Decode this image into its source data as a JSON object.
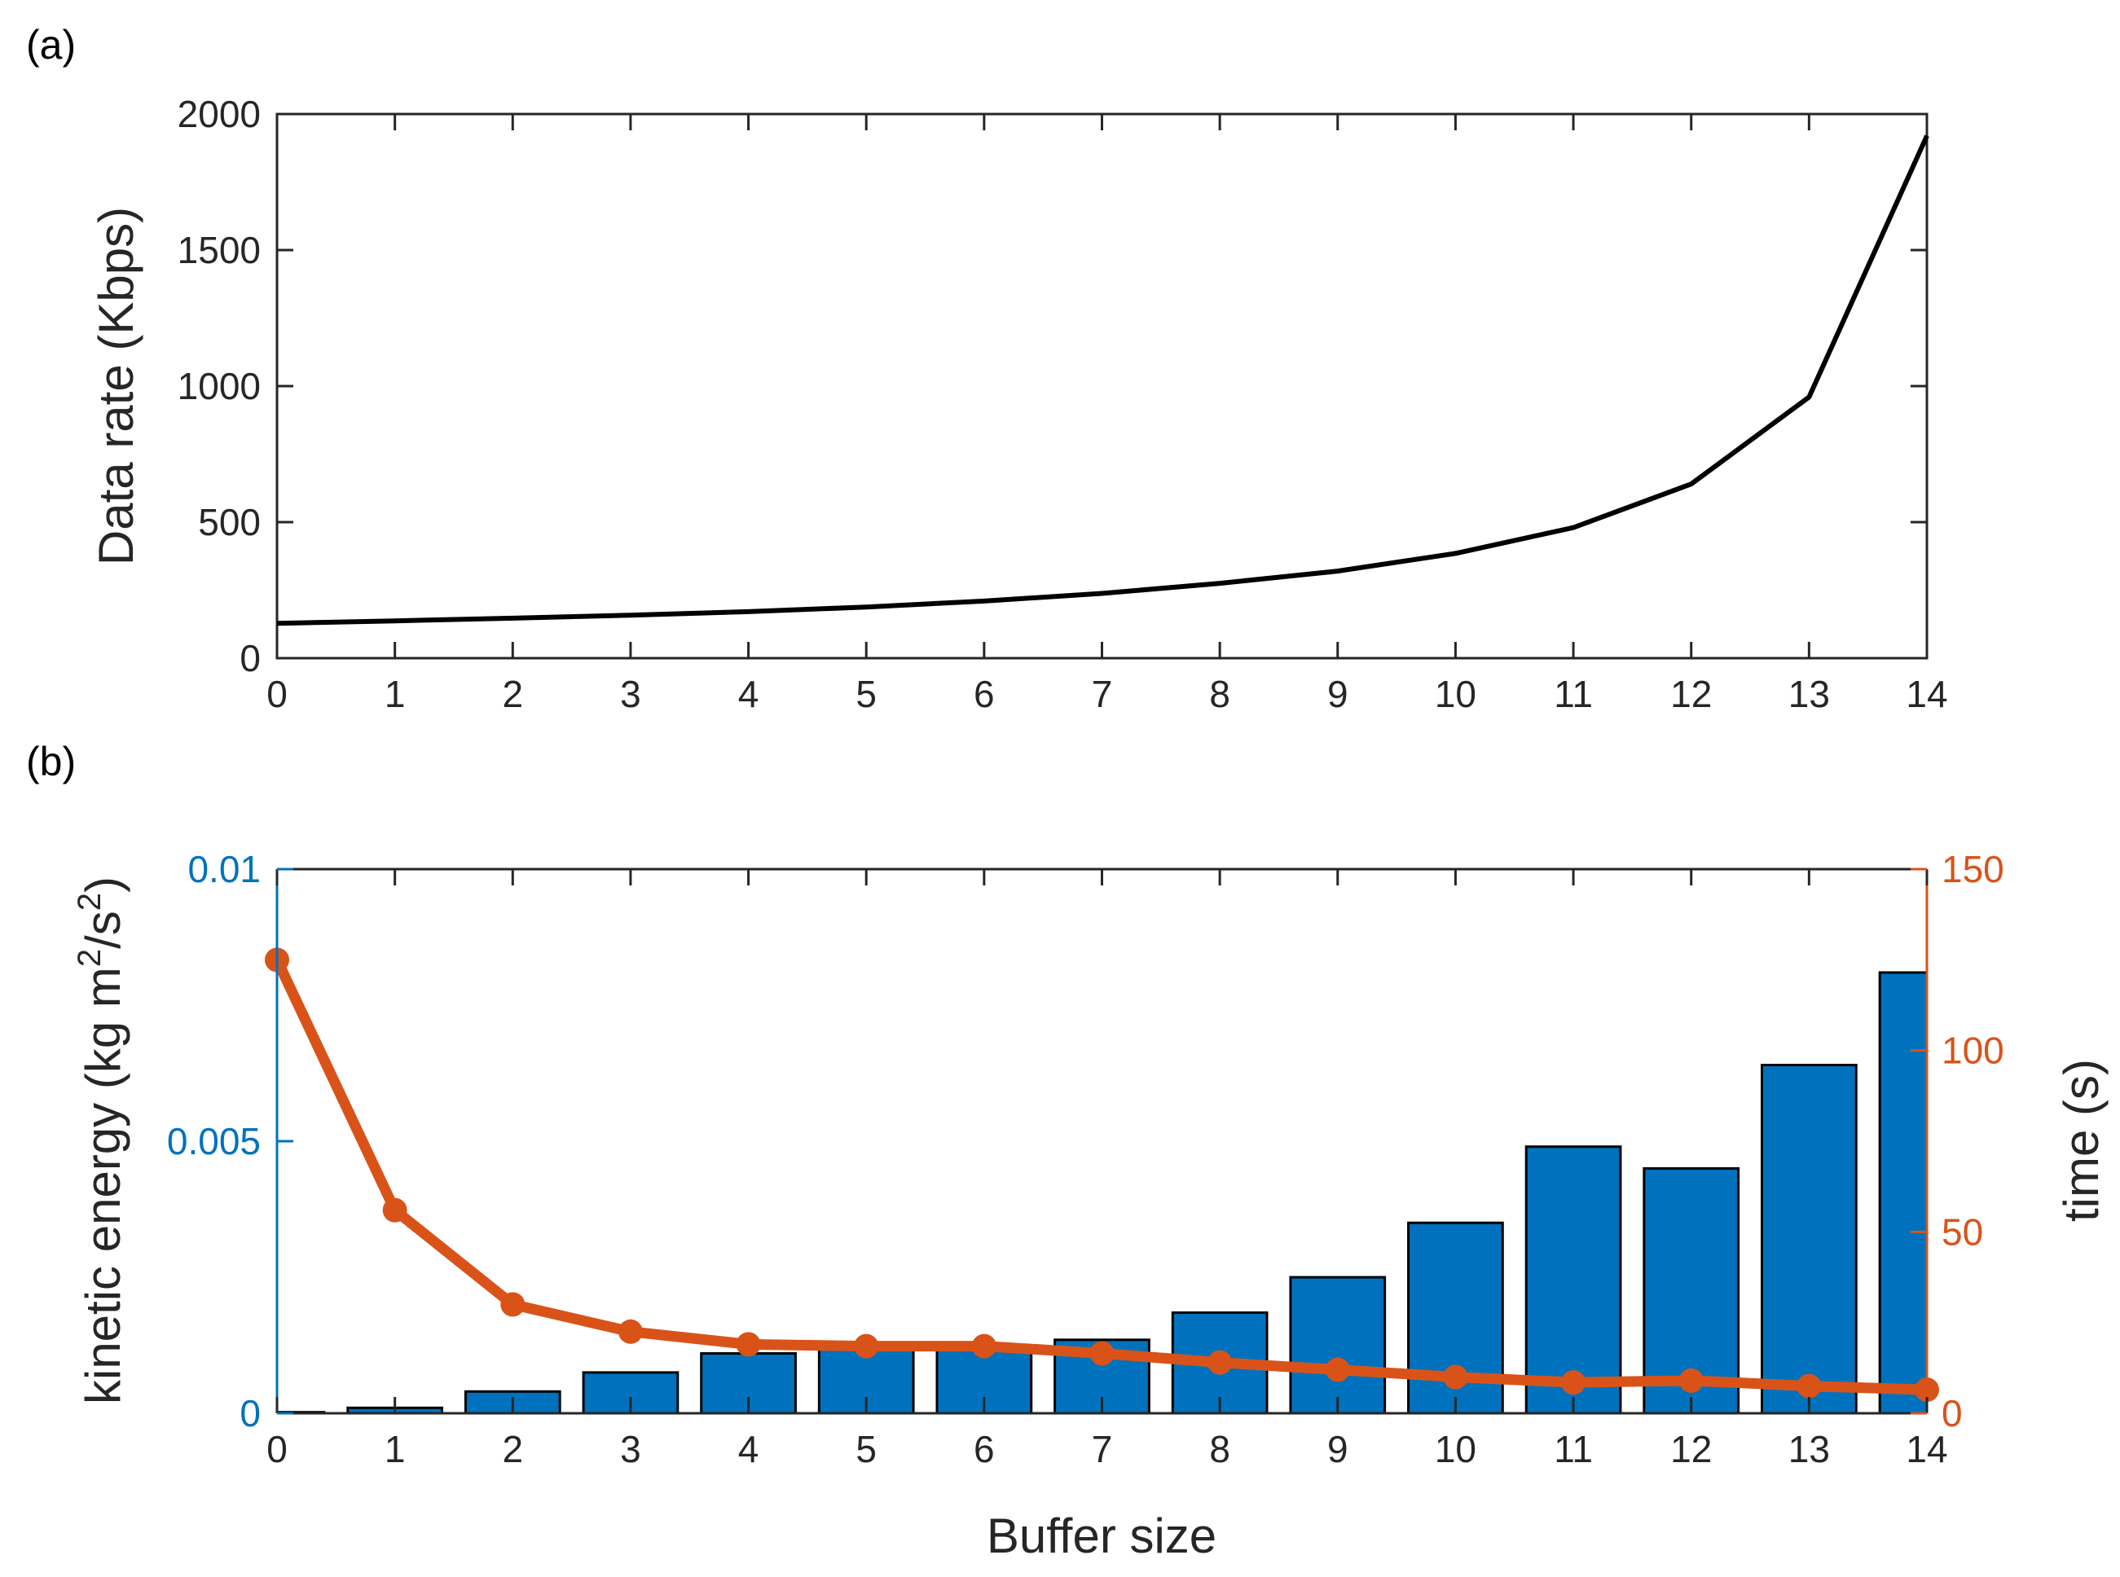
{
  "chart_data": [
    {
      "panel": "(a)",
      "type": "line",
      "xlabel": "",
      "ylabel": "Data rate (Kbps)",
      "xlim": [
        0,
        14
      ],
      "ylim": [
        0,
        2000
      ],
      "xticks": [
        0,
        1,
        2,
        3,
        4,
        5,
        6,
        7,
        8,
        9,
        10,
        11,
        12,
        13,
        14
      ],
      "yticks": [
        0,
        500,
        1000,
        1500,
        2000
      ],
      "grid": false,
      "line_color": "#000000",
      "series": [
        {
          "x": [
            0,
            1,
            2,
            3,
            4,
            5,
            6,
            7,
            8,
            9,
            10,
            11,
            12,
            13,
            14
          ],
          "values": [
            128,
            137,
            147,
            158,
            171,
            188,
            210,
            238,
            275,
            320,
            385,
            480,
            640,
            960,
            1920
          ]
        }
      ]
    },
    {
      "panel": "(b)",
      "type": "bar",
      "xlabel": "Buffer size",
      "ylabel": "kinetic energy (kg m²/s²)",
      "ylabel_parts": [
        "kinetic energy (kg m",
        "2",
        "/s",
        "2",
        ")"
      ],
      "y2label": "time (s)",
      "xlim": [
        0,
        14
      ],
      "ylim": [
        0,
        0.01
      ],
      "y2lim": [
        0,
        150
      ],
      "xticks": [
        0,
        1,
        2,
        3,
        4,
        5,
        6,
        7,
        8,
        9,
        10,
        11,
        12,
        13,
        14
      ],
      "yticks": [
        "0",
        "0.005",
        "0.01"
      ],
      "yticks_values": [
        0,
        0.005,
        0.01
      ],
      "y2ticks": [
        0,
        50,
        100,
        150
      ],
      "grid": false,
      "bar_color": "#0072BD",
      "line_color": "#D95319",
      "categories": [
        0,
        1,
        2,
        3,
        4,
        5,
        6,
        7,
        8,
        9,
        10,
        11,
        12,
        13,
        14
      ],
      "series": [
        {
          "axis": "left",
          "kind": "bar",
          "values": [
            2e-05,
            0.0001,
            0.0004,
            0.00075,
            0.0011,
            0.0012,
            0.0012,
            0.00135,
            0.00185,
            0.0025,
            0.0035,
            0.0049,
            0.0045,
            0.0064,
            0.0081
          ]
        },
        {
          "axis": "right",
          "kind": "line",
          "values": [
            125,
            56,
            30,
            22.5,
            19,
            18.5,
            18.5,
            16.5,
            14,
            12,
            10,
            8.5,
            9,
            7.5,
            6.5
          ]
        }
      ]
    }
  ]
}
